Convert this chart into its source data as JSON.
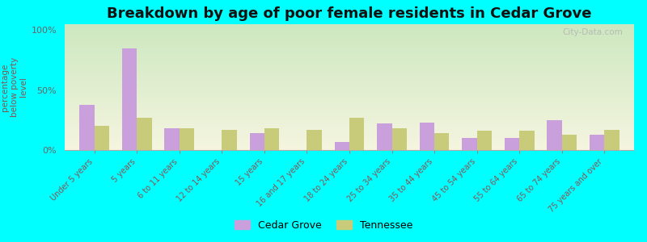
{
  "title": "Breakdown by age of poor female residents in Cedar Grove",
  "ylabel": "percentage\nbelow poverty\nlevel",
  "categories": [
    "Under 5 years",
    "5 years",
    "6 to 11 years",
    "12 to 14 years",
    "15 years",
    "16 and 17 years",
    "18 to 24 years",
    "25 to 34 years",
    "35 to 44 years",
    "45 to 54 years",
    "55 to 64 years",
    "65 to 74 years",
    "75 years and over"
  ],
  "cedar_grove": [
    38,
    85,
    18,
    0,
    14,
    0,
    7,
    22,
    23,
    10,
    10,
    25,
    13
  ],
  "tennessee": [
    20,
    27,
    18,
    17,
    18,
    17,
    27,
    18,
    14,
    16,
    16,
    13,
    17
  ],
  "cedar_grove_color": "#c9a0dc",
  "tennessee_color": "#c8cc7a",
  "background_color": "#00ffff",
  "ylim": [
    0,
    105
  ],
  "yticks": [
    0,
    50,
    100
  ],
  "ytick_labels": [
    "0%",
    "50%",
    "100%"
  ],
  "title_fontsize": 13,
  "legend_labels": [
    "Cedar Grove",
    "Tennessee"
  ],
  "watermark": "City-Data.com",
  "bar_width": 0.35
}
